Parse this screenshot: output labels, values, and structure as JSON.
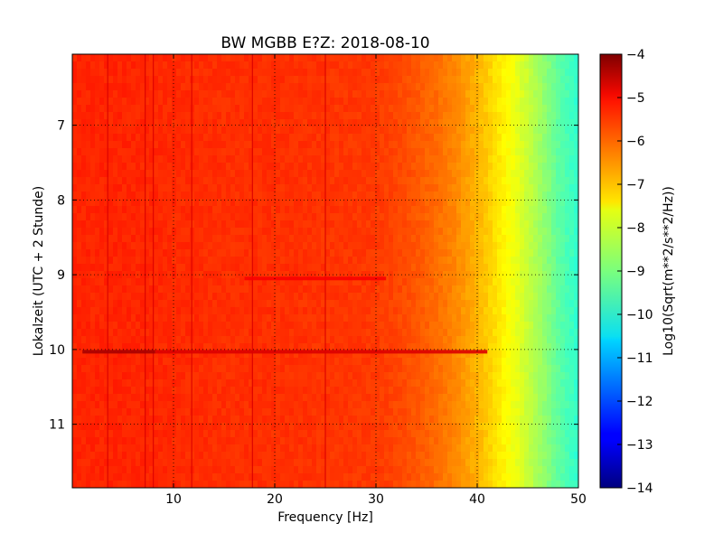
{
  "chart_data": {
    "type": "heatmap",
    "title": "BW MGBB E?Z: 2018-08-10",
    "xlabel": "Frequency [Hz]",
    "ylabel": "Lokalzeit (UTC + 2 Stunde)",
    "xlim": [
      0,
      50
    ],
    "ylim": [
      11.85,
      6.05
    ],
    "y_inverted": true,
    "xticks": [
      10,
      20,
      30,
      40,
      50
    ],
    "yticks": [
      7,
      8,
      9,
      10,
      11
    ],
    "grid": true,
    "colorbar": {
      "label": "Log10(Sqrt(m**2/s**2/Hz))",
      "range": [
        -14,
        -4
      ],
      "ticks": [
        -4,
        -5,
        -6,
        -7,
        -8,
        -9,
        -10,
        -11,
        -12,
        -13,
        -14
      ],
      "colormap": "jet"
    },
    "spectrum_profile": {
      "frequency_hz": [
        0,
        5,
        10,
        15,
        20,
        25,
        30,
        33,
        36,
        38,
        40,
        42,
        44,
        46,
        48,
        50
      ],
      "level": [
        -5.6,
        -5.6,
        -5.65,
        -5.7,
        -5.7,
        -5.75,
        -5.8,
        -6.0,
        -6.3,
        -6.6,
        -7.0,
        -7.5,
        -8.0,
        -8.6,
        -9.3,
        -9.8
      ]
    },
    "vertical_lines_hz": [
      3.5,
      7.2,
      8.0,
      11.8,
      17.8,
      25.0
    ],
    "horizontal_events": [
      {
        "time": 10.03,
        "from_hz": 1.0,
        "to_hz": 8.2,
        "level": -4.4
      },
      {
        "time": 10.03,
        "from_hz": 8.2,
        "to_hz": 41.0,
        "level": -4.9
      },
      {
        "time": 9.05,
        "from_hz": 17.0,
        "to_hz": 31.0,
        "level": -5.2
      }
    ]
  }
}
